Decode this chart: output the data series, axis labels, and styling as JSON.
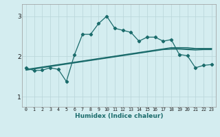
{
  "xlabel": "Humidex (Indice chaleur)",
  "background_color": "#d4edf0",
  "grid_color": "#b8d4d8",
  "line_color": "#1a6b6b",
  "xlim": [
    -0.5,
    23.5
  ],
  "ylim": [
    0.75,
    3.3
  ],
  "yticks": [
    1,
    2,
    3
  ],
  "xticks": [
    0,
    1,
    2,
    3,
    4,
    5,
    6,
    7,
    8,
    9,
    10,
    11,
    12,
    13,
    14,
    15,
    16,
    17,
    18,
    19,
    20,
    21,
    22,
    23
  ],
  "main_line_x": [
    0,
    1,
    2,
    3,
    4,
    5,
    6,
    7,
    8,
    9,
    10,
    11,
    12,
    13,
    14,
    15,
    16,
    17,
    18,
    19,
    20,
    21,
    22,
    23
  ],
  "main_line_y": [
    1.72,
    1.65,
    1.66,
    1.72,
    1.68,
    1.38,
    2.04,
    2.55,
    2.55,
    2.82,
    3.0,
    2.7,
    2.65,
    2.6,
    2.38,
    2.48,
    2.48,
    2.38,
    2.42,
    2.05,
    2.02,
    1.72,
    1.78,
    1.8
  ],
  "reg_lines": [
    [
      1.68,
      1.71,
      1.74,
      1.77,
      1.8,
      1.83,
      1.86,
      1.89,
      1.92,
      1.95,
      1.98,
      2.01,
      2.04,
      2.07,
      2.1,
      2.13,
      2.16,
      2.19,
      2.22,
      2.22,
      2.22,
      2.2,
      2.2,
      2.2
    ],
    [
      1.67,
      1.7,
      1.73,
      1.76,
      1.79,
      1.82,
      1.85,
      1.88,
      1.91,
      1.94,
      1.97,
      2.0,
      2.03,
      2.06,
      2.09,
      2.12,
      2.15,
      2.18,
      2.2,
      2.2,
      2.19,
      2.18,
      2.19,
      2.19
    ],
    [
      1.66,
      1.69,
      1.72,
      1.75,
      1.78,
      1.81,
      1.84,
      1.87,
      1.9,
      1.93,
      1.96,
      1.99,
      2.02,
      2.05,
      2.08,
      2.11,
      2.14,
      2.17,
      2.18,
      2.18,
      2.17,
      2.16,
      2.17,
      2.17
    ]
  ],
  "xlabel_fontsize": 6.5,
  "xtick_fontsize": 4.8,
  "ytick_fontsize": 6.5,
  "spine_color": "#999999"
}
